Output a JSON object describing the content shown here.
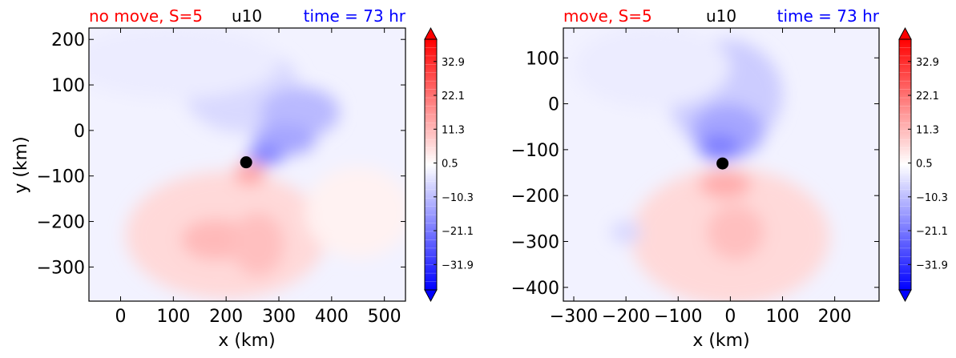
{
  "chart_data": [
    {
      "type": "heatmap",
      "title_left": "no move, S=5",
      "title_center": "u10",
      "title_right": "time = 73 hr",
      "xlabel": "x (km)",
      "ylabel": "y (km)",
      "xlim": [
        -60,
        540
      ],
      "ylim": [
        -375,
        225
      ],
      "xticks": [
        0,
        100,
        200,
        300,
        400,
        500
      ],
      "yticks": [
        200,
        100,
        0,
        -100,
        -200,
        -300
      ],
      "xtick_labels": [
        "0",
        "100",
        "200",
        "300",
        "400",
        "500"
      ],
      "ytick_labels": [
        "200",
        "100",
        "0",
        "−100",
        "−200",
        "−300"
      ],
      "center_marker": {
        "x": 238,
        "y": -70
      },
      "fields": [
        {
          "x": 230,
          "y": 90,
          "rx": 110,
          "ry": 95,
          "value": -6
        },
        {
          "x": 340,
          "y": 40,
          "rx": 75,
          "ry": 55,
          "value": -11
        },
        {
          "x": 310,
          "y": -20,
          "rx": 60,
          "ry": 35,
          "value": -14
        },
        {
          "x": 275,
          "y": -55,
          "rx": 35,
          "ry": 20,
          "value": -20
        },
        {
          "x": 100,
          "y": 150,
          "rx": 200,
          "ry": 80,
          "value": -3
        },
        {
          "x": 200,
          "y": -230,
          "rx": 190,
          "ry": 140,
          "value": 6
        },
        {
          "x": 180,
          "y": -240,
          "rx": 65,
          "ry": 45,
          "value": 11
        },
        {
          "x": 260,
          "y": -250,
          "rx": 50,
          "ry": 70,
          "value": 10
        },
        {
          "x": 245,
          "y": -95,
          "rx": 30,
          "ry": 25,
          "value": 14
        },
        {
          "x": 450,
          "y": -180,
          "rx": 100,
          "ry": 100,
          "value": 2
        }
      ],
      "colorbar": {
        "ticks": [
          32.9,
          22.1,
          11.3,
          0.5,
          -10.3,
          -21.1,
          -31.9
        ],
        "tick_labels": [
          "32.9",
          "22.1",
          "11.3",
          "0.5",
          "−10.3",
          "−21.1",
          "−31.9"
        ],
        "min": -40,
        "max": 40
      }
    },
    {
      "type": "heatmap",
      "title_left": "move, S=5",
      "title_center": "u10",
      "title_right": "time = 73 hr",
      "xlabel": "x (km)",
      "ylabel": "",
      "xlim": [
        -320,
        285
      ],
      "ylim": [
        -430,
        165
      ],
      "xticks": [
        -300,
        -200,
        -100,
        0,
        100,
        200
      ],
      "yticks": [
        100,
        0,
        -100,
        -200,
        -300,
        -400
      ],
      "xtick_labels": [
        "−300",
        "−200",
        "−100",
        "0",
        "100",
        "200"
      ],
      "ytick_labels": [
        "100",
        "0",
        "−100",
        "−200",
        "−300",
        "−400"
      ],
      "center_marker": {
        "x": -15,
        "y": -130
      },
      "fields": [
        {
          "x": -10,
          "y": 20,
          "rx": 110,
          "ry": 120,
          "value": -8
        },
        {
          "x": -5,
          "y": -60,
          "rx": 70,
          "ry": 60,
          "value": -14
        },
        {
          "x": -20,
          "y": -95,
          "rx": 40,
          "ry": 30,
          "value": -20
        },
        {
          "x": -150,
          "y": 80,
          "rx": 150,
          "ry": 90,
          "value": -3
        },
        {
          "x": 0,
          "y": -290,
          "rx": 190,
          "ry": 150,
          "value": 6
        },
        {
          "x": -10,
          "y": -175,
          "rx": 50,
          "ry": 30,
          "value": 13
        },
        {
          "x": 10,
          "y": -280,
          "rx": 55,
          "ry": 60,
          "value": 10
        },
        {
          "x": -200,
          "y": -280,
          "rx": 30,
          "ry": 25,
          "value": -6
        }
      ],
      "colorbar": {
        "ticks": [
          32.9,
          22.1,
          11.3,
          0.5,
          -10.3,
          -21.1,
          -31.9
        ],
        "tick_labels": [
          "32.9",
          "22.1",
          "11.3",
          "0.5",
          "−10.3",
          "−21.1",
          "−31.9"
        ],
        "min": -40,
        "max": 40
      }
    }
  ],
  "colors": {
    "title_left": "#ff0000",
    "title_right": "#0000ff",
    "title_center": "#000000",
    "background_field": "#f2f2ff",
    "marker": "#000000"
  }
}
